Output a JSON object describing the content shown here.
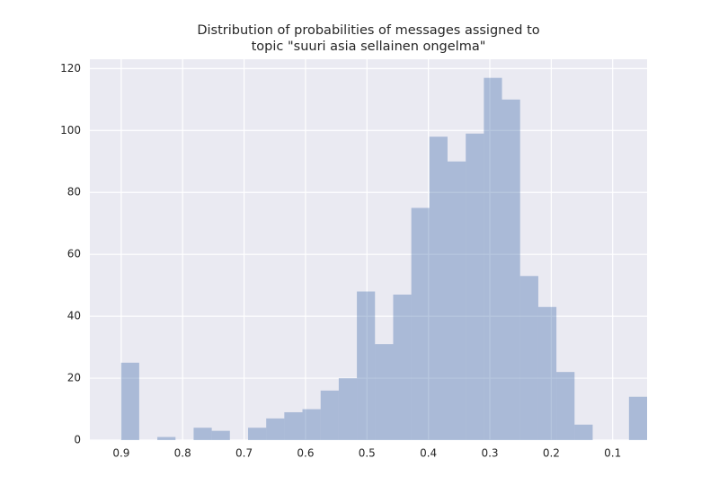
{
  "chart_data": {
    "type": "histogram",
    "title": [
      "Distribution of probabilities of messages assigned to",
      "topic \"suuri asia sellainen ongelma\""
    ],
    "bins": [
      0.044,
      0.0735,
      0.103,
      0.1326,
      0.1621,
      0.1916,
      0.2211,
      0.2507,
      0.2802,
      0.3097,
      0.3392,
      0.3688,
      0.3983,
      0.4278,
      0.4573,
      0.4869,
      0.5164,
      0.5459,
      0.5754,
      0.605,
      0.6345,
      0.664,
      0.6935,
      0.7231,
      0.7526,
      0.7821,
      0.8116,
      0.8412,
      0.8707,
      0.9002
    ],
    "values": [
      14,
      0,
      0,
      5,
      22,
      43,
      53,
      110,
      117,
      99,
      90,
      98,
      75,
      47,
      31,
      48,
      20,
      16,
      10,
      9,
      7,
      4,
      0,
      3,
      4,
      0,
      1,
      0,
      25
    ],
    "color": "#4c72b0",
    "alpha": 0.4,
    "xlim": [
      0.951,
      0.044
    ],
    "xticks": [
      0.9,
      0.8,
      0.7,
      0.6,
      0.5,
      0.4,
      0.3,
      0.2,
      0.1
    ],
    "ylim": [
      0,
      123
    ],
    "yticks": [
      0,
      20,
      40,
      60,
      80,
      100,
      120
    ],
    "grid": true
  }
}
